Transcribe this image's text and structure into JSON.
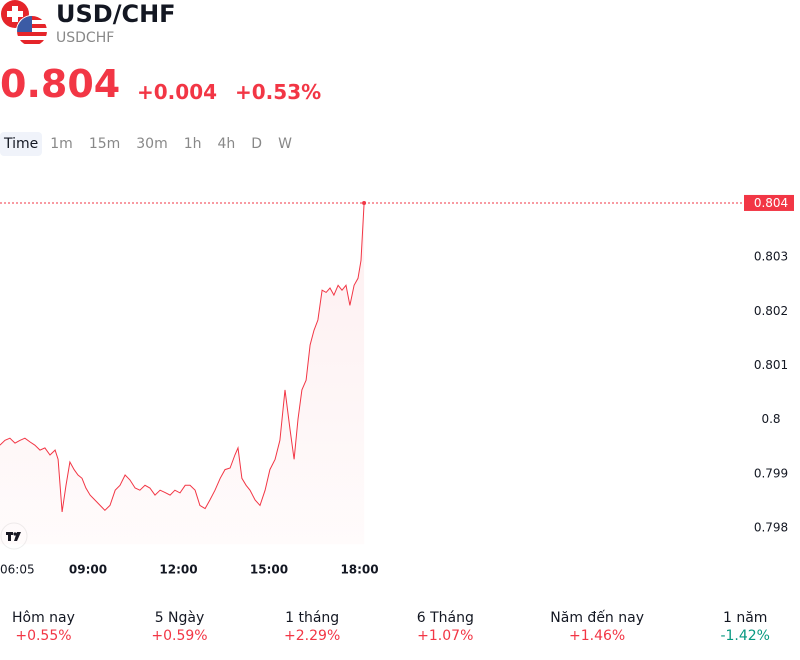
{
  "header": {
    "title": "USD/CHF",
    "symbol": "USDCHF",
    "price": "0.804",
    "change": "+0.004",
    "change_percent": "+0.53%"
  },
  "tabs": {
    "items": [
      "Time",
      "1m",
      "15m",
      "30m",
      "1h",
      "4h",
      "D",
      "W"
    ],
    "selected": 0
  },
  "chart_data": {
    "type": "line",
    "x": [
      6.08,
      6.25,
      6.41,
      6.58,
      6.75,
      6.91,
      7.08,
      7.24,
      7.41,
      7.57,
      7.74,
      7.91,
      8.01,
      8.14,
      8.27,
      8.4,
      8.54,
      8.67,
      8.8,
      8.93,
      9.07,
      9.23,
      9.4,
      9.56,
      9.73,
      9.9,
      10.06,
      10.23,
      10.39,
      10.56,
      10.72,
      10.89,
      11.05,
      11.22,
      11.39,
      11.55,
      11.72,
      11.88,
      12.05,
      12.22,
      12.38,
      12.55,
      12.71,
      12.88,
      13.04,
      13.21,
      13.38,
      13.54,
      13.71,
      13.87,
      13.97,
      14.1,
      14.24,
      14.37,
      14.54,
      14.7,
      14.87,
      15.03,
      15.2,
      15.36,
      15.53,
      15.7,
      15.83,
      15.96,
      16.09,
      16.23,
      16.36,
      16.49,
      16.62,
      16.76,
      16.89,
      17.02,
      17.15,
      17.29,
      17.42,
      17.55,
      17.68,
      17.82,
      17.95,
      18.05,
      18.15
    ],
    "series": [
      {
        "name": "USDCHF",
        "color": "#f23645",
        "values": [
          0.79953,
          0.79962,
          0.79966,
          0.79957,
          0.79962,
          0.79966,
          0.79959,
          0.79953,
          0.79944,
          0.79948,
          0.79935,
          0.79944,
          0.79927,
          0.7983,
          0.79879,
          0.79922,
          0.79908,
          0.79898,
          0.79892,
          0.79874,
          0.79861,
          0.79852,
          0.79842,
          0.79833,
          0.79842,
          0.7987,
          0.79879,
          0.79898,
          0.79889,
          0.79874,
          0.7987,
          0.79879,
          0.79874,
          0.79861,
          0.7987,
          0.79866,
          0.79861,
          0.7987,
          0.79865,
          0.79879,
          0.79879,
          0.7987,
          0.79842,
          0.79836,
          0.79852,
          0.7987,
          0.79892,
          0.79908,
          0.79911,
          0.79935,
          0.79948,
          0.79892,
          0.79879,
          0.7987,
          0.79852,
          0.79842,
          0.7987,
          0.79908,
          0.79927,
          0.79962,
          0.80055,
          0.79981,
          0.79927,
          0.80001,
          0.80055,
          0.80073,
          0.80138,
          0.80165,
          0.80184,
          0.80239,
          0.80235,
          0.80243,
          0.8023,
          0.80248,
          0.80239,
          0.80248,
          0.80211,
          0.80248,
          0.80261,
          0.80294,
          0.804
        ]
      }
    ],
    "xlim": [
      6.0833,
      30.61
    ],
    "xticks": [
      {
        "value": 6.0833,
        "label": "06:05"
      },
      {
        "value": 9,
        "label": "09:00"
      },
      {
        "value": 12,
        "label": "12:00"
      },
      {
        "value": 15,
        "label": "15:00"
      },
      {
        "value": 18,
        "label": "18:00"
      }
    ],
    "ylim": [
      0.7977,
      0.8043
    ],
    "yticks": [
      0.798,
      0.799,
      0.8,
      0.801,
      0.802,
      0.803
    ],
    "price_line": {
      "value": 0.804,
      "label": "0.804"
    }
  },
  "performance": [
    {
      "label": "Hôm nay",
      "value": "+0.55%",
      "color": "#f23645"
    },
    {
      "label": "5 Ngày",
      "value": "+0.59%",
      "color": "#f23645"
    },
    {
      "label": "1 tháng",
      "value": "+2.29%",
      "color": "#f23645"
    },
    {
      "label": "6 Tháng",
      "value": "+1.07%",
      "color": "#f23645"
    },
    {
      "label": "Năm đến nay",
      "value": "+1.46%",
      "color": "#f23645"
    },
    {
      "label": "1 năm",
      "value": "-1.42%",
      "color": "#089981"
    }
  ]
}
